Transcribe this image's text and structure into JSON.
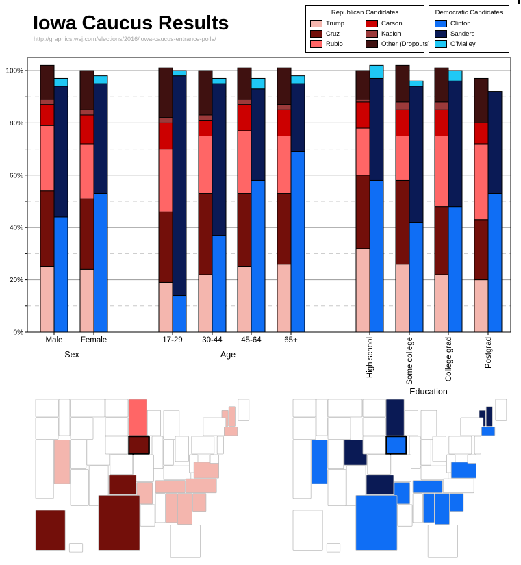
{
  "title": "Iowa Caucus Results",
  "source": "http://graphics.wsj.com/elections/2016/iowa-caucus-entrance-polls/",
  "legend_republican": {
    "title": "Republican Candidates",
    "items": [
      {
        "name": "Trump",
        "color": "#f4b6ae"
      },
      {
        "name": "Carson",
        "color": "#cc0000"
      },
      {
        "name": "Cruz",
        "color": "#730f0a"
      },
      {
        "name": "Kasich",
        "color": "#9c3a3a"
      },
      {
        "name": "Rubio",
        "color": "#ff6666"
      },
      {
        "name": "Other (Dropouts)",
        "color": "#3f1110"
      }
    ]
  },
  "legend_democratic": {
    "title": "Democratic Candidates",
    "items": [
      {
        "name": "Clinton",
        "color": "#0f6ef5"
      },
      {
        "name": "Sanders",
        "color": "#0a1a55"
      },
      {
        "name": "O'Malley",
        "color": "#1fc8f5"
      }
    ]
  },
  "chart_data": {
    "type": "bar",
    "stacked": true,
    "ylim": [
      0,
      100
    ],
    "ytick_labels": [
      "0%",
      "20%",
      "40%",
      "60%",
      "80%",
      "100%"
    ],
    "grid": "solid lines every 20%, dashed every 10%",
    "legend_position": "top-right",
    "groups": [
      {
        "label": "Sex",
        "categories": [
          "Male",
          "Female"
        ]
      },
      {
        "label": "Age",
        "categories": [
          "17-29",
          "30-44",
          "45-64",
          "65+"
        ]
      },
      {
        "label": "Education",
        "categories": [
          "High school",
          "Some college",
          "College grad",
          "Postgrad"
        ]
      }
    ],
    "republican_series": [
      {
        "name": "Trump",
        "values": [
          25,
          24,
          19,
          22,
          25,
          26,
          32,
          26,
          22,
          20
        ]
      },
      {
        "name": "Cruz",
        "values": [
          29,
          27,
          27,
          31,
          28,
          27,
          28,
          32,
          26,
          23
        ]
      },
      {
        "name": "Rubio",
        "values": [
          25,
          21,
          24,
          22,
          24,
          22,
          18,
          17,
          27,
          29
        ]
      },
      {
        "name": "Carson",
        "values": [
          8,
          11,
          10,
          6,
          10,
          10,
          10,
          10,
          10,
          8
        ]
      },
      {
        "name": "Kasich",
        "values": [
          2,
          2,
          2,
          2,
          2,
          2,
          1,
          3,
          3,
          0
        ]
      },
      {
        "name": "Other (Dropouts)",
        "values": [
          13,
          15,
          19,
          17,
          12,
          14,
          11,
          14,
          13,
          17
        ]
      }
    ],
    "democratic_series": [
      {
        "name": "Clinton",
        "values": [
          44,
          53,
          14,
          37,
          58,
          69,
          58,
          42,
          48,
          53
        ]
      },
      {
        "name": "Sanders",
        "values": [
          50,
          42,
          84,
          58,
          35,
          26,
          39,
          52,
          48,
          39
        ]
      },
      {
        "name": "O'Malley",
        "values": [
          3,
          3,
          2,
          2,
          4,
          3,
          5,
          2,
          4,
          0
        ]
      }
    ]
  },
  "maps": {
    "republican": {
      "Trump": [
        "NH",
        "MA",
        "VT",
        "NV",
        "SC",
        "NC",
        "VA",
        "TN",
        "AL",
        "GA",
        "AR"
      ],
      "Cruz": [
        "IA",
        "TX",
        "OK",
        "AK"
      ],
      "Rubio": [
        "MN"
      ],
      "highlight": "IA"
    },
    "democratic": {
      "Clinton": [
        "IA",
        "NV",
        "TX",
        "AR",
        "TN",
        "AL",
        "GA",
        "SC",
        "VA",
        "MA"
      ],
      "Sanders": [
        "NH",
        "VT",
        "MN",
        "CO",
        "OK"
      ],
      "highlight": "IA"
    }
  }
}
